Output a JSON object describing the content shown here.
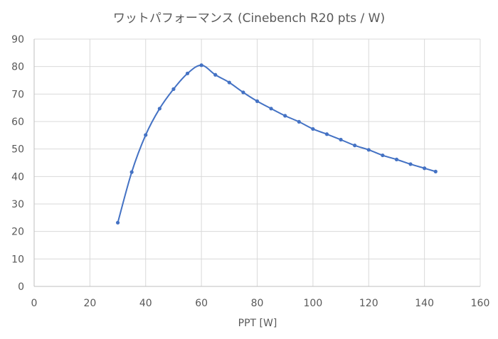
{
  "chart_data": {
    "type": "scatter",
    "title": "ワットパフォーマンス (Cinebench R20 pts / W)",
    "xlabel": "PPT [W]",
    "ylabel": "",
    "xlim": [
      0,
      160
    ],
    "ylim": [
      0,
      90
    ],
    "x_ticks": [
      0,
      20,
      40,
      60,
      80,
      100,
      120,
      140,
      160
    ],
    "y_ticks": [
      0,
      10,
      20,
      30,
      40,
      50,
      60,
      70,
      80,
      90
    ],
    "grid": true,
    "legend": "none",
    "series": [
      {
        "color": "#4472c4",
        "smooth": true,
        "points": [
          [
            30,
            23.2
          ],
          [
            35,
            41.6
          ],
          [
            40,
            55.1
          ],
          [
            45,
            64.7
          ],
          [
            50,
            71.8
          ],
          [
            55,
            77.5
          ],
          [
            60,
            80.5
          ],
          [
            65,
            77.0
          ],
          [
            70,
            74.2
          ],
          [
            75,
            70.6
          ],
          [
            80,
            67.4
          ],
          [
            85,
            64.7
          ],
          [
            90,
            62.1
          ],
          [
            95,
            59.9
          ],
          [
            100,
            57.3
          ],
          [
            105,
            55.4
          ],
          [
            110,
            53.4
          ],
          [
            115,
            51.3
          ],
          [
            120,
            49.7
          ],
          [
            125,
            47.7
          ],
          [
            130,
            46.2
          ],
          [
            135,
            44.5
          ],
          [
            140,
            43.0
          ],
          [
            144,
            41.8
          ]
        ]
      }
    ]
  }
}
